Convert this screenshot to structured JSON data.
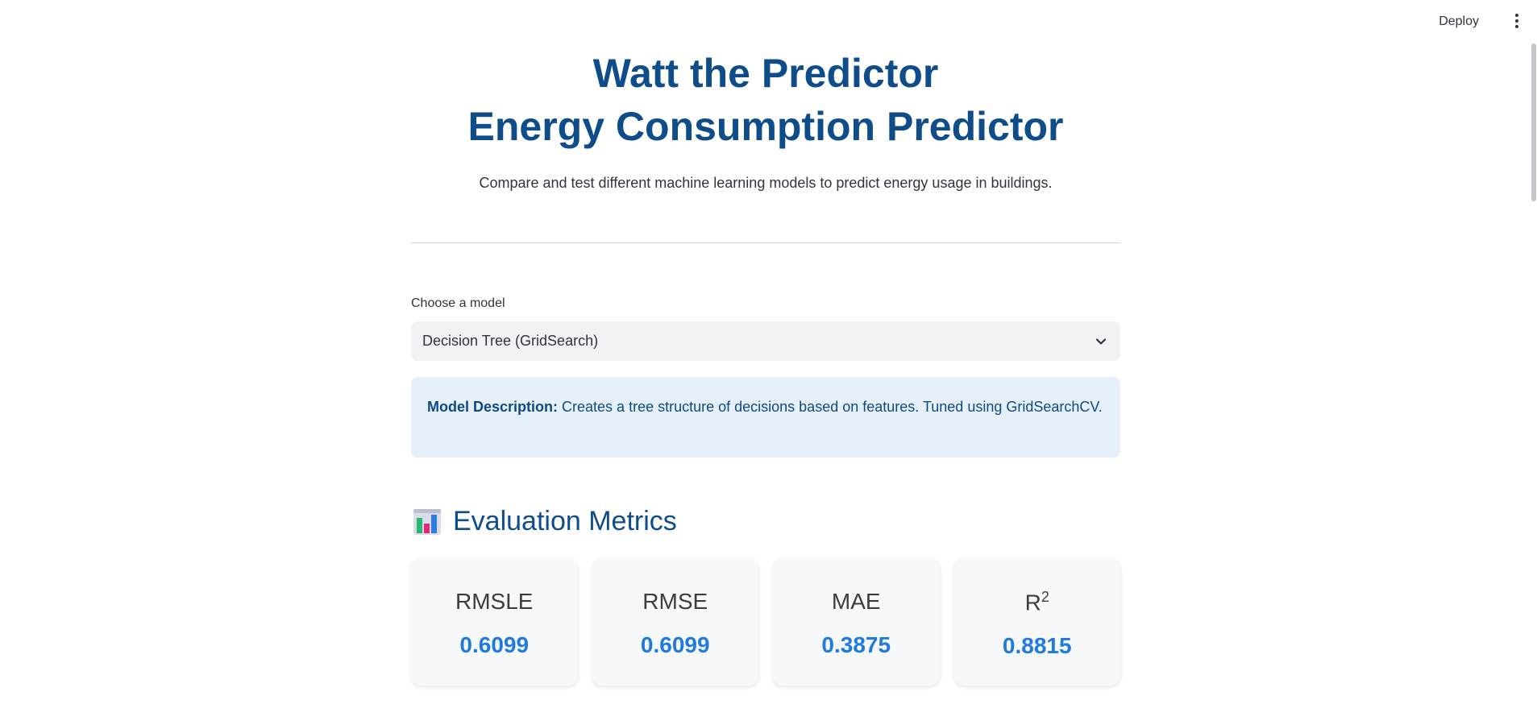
{
  "header": {
    "deploy_label": "Deploy",
    "menu_icon": "kebab-menu-icon"
  },
  "hero": {
    "title_line1": "Watt the Predictor",
    "title_line2": "Energy Consumption Predictor",
    "subtitle": "Compare and test different machine learning models to predict energy usage in buildings."
  },
  "model_select": {
    "label": "Choose a model",
    "value": "Decision Tree (GridSearch)"
  },
  "model_info": {
    "bold_label": "Model Description:",
    "text": "Creates a tree structure of decisions based on features. Tuned using GridSearchCV."
  },
  "metrics": {
    "icon": "bar-chart-icon",
    "title": "Evaluation Metrics",
    "cards": [
      {
        "label": "RMSLE",
        "value": "0.6099"
      },
      {
        "label": "RMSE",
        "value": "0.6099"
      },
      {
        "label": "MAE",
        "value": "0.3875"
      },
      {
        "label": "R",
        "label_sup": "2",
        "value": "0.8815"
      }
    ]
  },
  "colors": {
    "title": "#0f4c8a",
    "metric_value": "#1f7ae0",
    "info_bg": "#e6f0fb",
    "select_bg": "#f0f2f6"
  }
}
